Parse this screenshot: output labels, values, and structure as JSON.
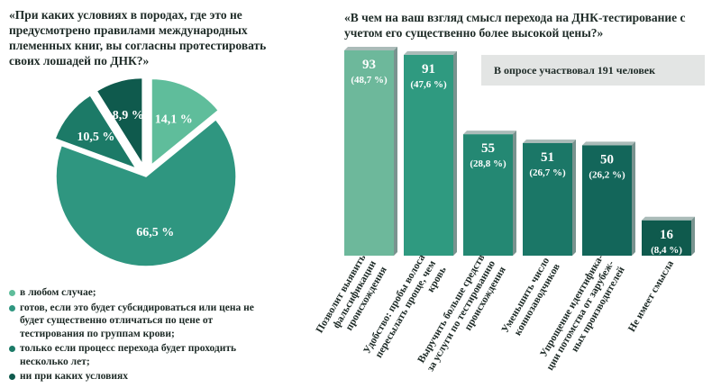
{
  "left": {
    "title": "«При каких условиях в породах, где это не предусмотрено правилами международных племенных книг, вы согласны протестировать своих лошадей по ДНК?»",
    "legend": [
      {
        "label": "в любом случае;",
        "color": "#5fbd9b"
      },
      {
        "label": "готов, если это будет субсидироваться или цена не будет существенно отличаться по цене от тестирования по группам крови;",
        "color": "#2f9680"
      },
      {
        "label": "только если процесс перехода будет проходить несколько лет;",
        "color": "#1c7a67"
      },
      {
        "label": "ни при каких условиях",
        "color": "#0f5a4d"
      }
    ]
  },
  "right": {
    "title": "«В чем на ваш взгляд смысл перехода на ДНК-тестирование с учетом его существенно более высокой цены?»",
    "note": "В опросе участвовал 191 человек"
  },
  "chart_data": [
    {
      "type": "pie",
      "slices": [
        {
          "label": "14,1 %",
          "value": 14.1,
          "color": "#5fbd9b",
          "exploded": true
        },
        {
          "label": "66,5 %",
          "value": 66.5,
          "color": "#2f9680",
          "exploded": false
        },
        {
          "label": "10,5 %",
          "value": 10.5,
          "color": "#1c7a67",
          "exploded": true
        },
        {
          "label": "8,9 %",
          "value": 8.9,
          "color": "#0f5a4d",
          "exploded": true
        }
      ]
    },
    {
      "type": "bar",
      "categories": [
        "Позволит выявить фальсификации происхождения",
        "Удобство: пробы волоса пересылать проще, чем кровь",
        "Выручить больше средств за услуги по тестированию происхождения",
        "Уменьшить число коннозаводчиков",
        "Упрощение идентифика-ции потомства от зарубеж-ных производителей",
        "Не имеет смысла"
      ],
      "values": [
        93,
        91,
        55,
        51,
        50,
        16
      ],
      "value_labels": [
        "93",
        "91",
        "55",
        "51",
        "50",
        "16"
      ],
      "percent_labels": [
        "(48,7 %)",
        "(47,6 %)",
        "(28,8 %)",
        "(26,7 %)",
        "(26,2 %)",
        "(8,4 %)"
      ],
      "colors": [
        "#6db89b",
        "#2f9a80",
        "#248873",
        "#1b7767",
        "#13665a",
        "#0f5a4d"
      ],
      "ylim": [
        0,
        100
      ]
    }
  ]
}
